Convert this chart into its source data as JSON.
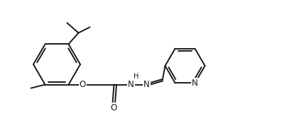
{
  "bg_color": "#ffffff",
  "line_color": "#1a1a1a",
  "line_width": 1.4,
  "font_size": 8.5,
  "figsize": [
    4.28,
    1.88
  ],
  "dpi": 100,
  "xlim": [
    0,
    428
  ],
  "ylim": [
    0,
    188
  ]
}
